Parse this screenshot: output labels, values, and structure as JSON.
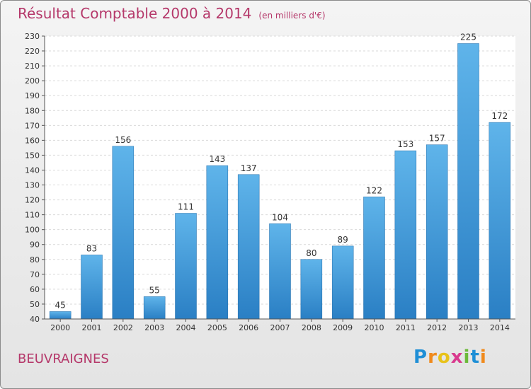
{
  "title": "Résultat Comptable 2000 à 2014",
  "unit_note": "(en milliers d'€)",
  "place": "BEUVRAIGNES",
  "logo": {
    "text": "Proxiti",
    "letters": [
      {
        "ch": "P",
        "color": "#1f8fd6"
      },
      {
        "ch": "r",
        "color": "#f08a1c"
      },
      {
        "ch": "o",
        "color": "#e8c21a"
      },
      {
        "ch": "x",
        "color": "#d93a8e"
      },
      {
        "ch": "i",
        "color": "#6cba3a"
      },
      {
        "ch": "t",
        "color": "#1f8fd6"
      },
      {
        "ch": "i",
        "color": "#f08a1c"
      }
    ]
  },
  "colors": {
    "bar_top": "#5fb4ea",
    "bar_bottom": "#2a7fc4",
    "title": "#b5386a"
  },
  "chart_data": {
    "type": "bar",
    "categories": [
      "2000",
      "2001",
      "2002",
      "2003",
      "2004",
      "2005",
      "2006",
      "2007",
      "2008",
      "2009",
      "2010",
      "2011",
      "2012",
      "2013",
      "2014"
    ],
    "values": [
      45,
      83,
      156,
      55,
      111,
      143,
      137,
      104,
      80,
      89,
      122,
      153,
      157,
      225,
      172
    ],
    "ylim": [
      40,
      230
    ],
    "yticks": [
      40,
      50,
      60,
      70,
      80,
      90,
      100,
      110,
      120,
      130,
      140,
      150,
      160,
      170,
      180,
      190,
      200,
      210,
      220,
      230
    ],
    "grid": true,
    "data_labels": true
  }
}
